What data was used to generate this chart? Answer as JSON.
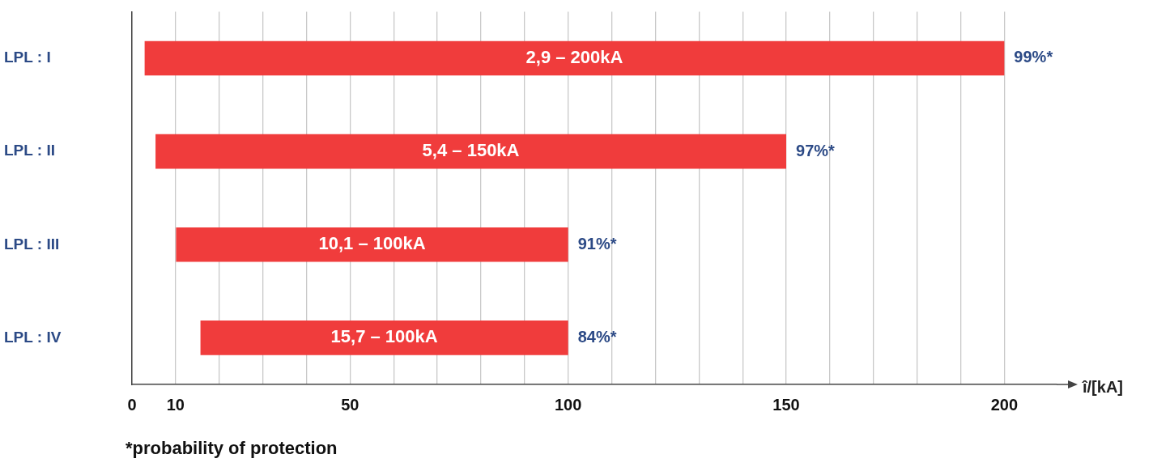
{
  "chart_data": {
    "type": "bar",
    "orientation": "horizontal",
    "categories": [
      "LPL : I",
      "LPL : II",
      "LPL : III",
      "LPL : IV"
    ],
    "base": [
      2.9,
      5.4,
      10.1,
      15.7
    ],
    "values": [
      197.1,
      144.6,
      89.9,
      84.3
    ],
    "color": "#f03c3c",
    "xlabel": "î/[kA]",
    "xlim": [
      0,
      212
    ],
    "xticks": [
      0,
      10,
      {
        "value": 20,
        "label": null
      },
      {
        "value": 30,
        "label": null
      },
      {
        "value": 40,
        "label": null
      },
      50,
      {
        "value": 60,
        "label": null
      },
      {
        "value": 70,
        "label": null
      },
      {
        "value": 80,
        "label": null
      },
      {
        "value": 90,
        "label": null
      },
      100,
      {
        "value": 110,
        "label": null
      },
      {
        "value": 120,
        "label": null
      },
      {
        "value": 130,
        "label": null
      },
      {
        "value": 140,
        "label": null
      },
      150,
      {
        "value": 160,
        "label": null
      },
      {
        "value": 170,
        "label": null
      },
      {
        "value": 180,
        "label": null
      },
      {
        "value": 190,
        "label": null
      },
      200
    ],
    "grid": "x",
    "legend": false,
    "annotations": [
      "2,9 – 200kA",
      "5,4 – 150kA",
      "10,1 – 100kA",
      "15,7 – 100kA",
      {
        "text": "99%*",
        "x": 200,
        "y": "LPL : I"
      },
      {
        "text": "97%*",
        "x": 150,
        "y": "LPL : II"
      },
      {
        "text": "91%*",
        "x": 100,
        "y": "LPL : III"
      },
      {
        "text": "84%*",
        "x": 100,
        "y": "LPL : IV"
      },
      "*probability of protection"
    ]
  }
}
